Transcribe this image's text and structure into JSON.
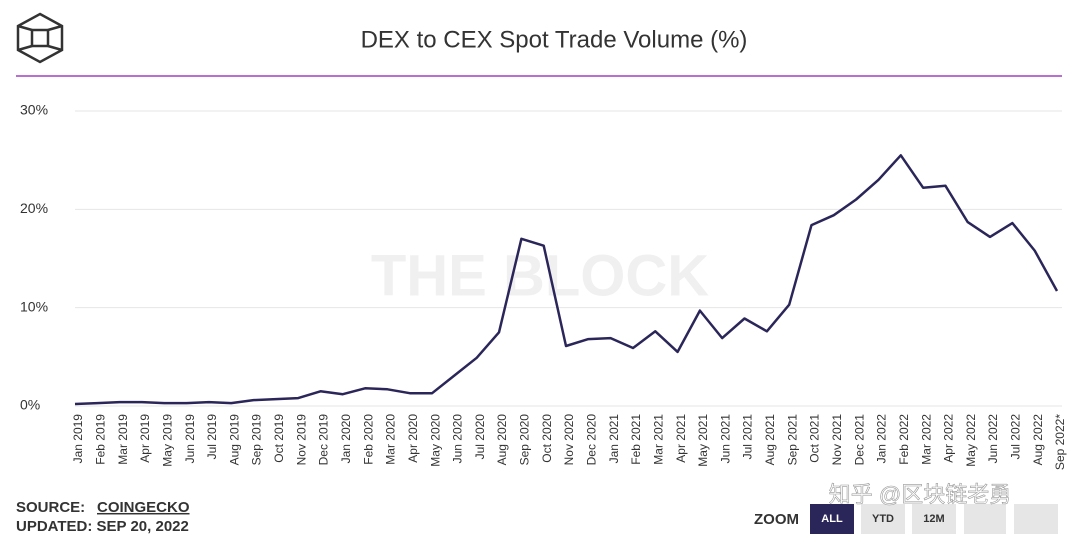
{
  "chart_data": {
    "type": "line",
    "title": "DEX to CEX Spot Trade Volume (%)",
    "categories": [
      "Jan 2019",
      "Feb 2019",
      "Mar 2019",
      "Apr 2019",
      "May 2019",
      "Jun 2019",
      "Jul 2019",
      "Aug 2019",
      "Sep 2019",
      "Oct 2019",
      "Nov 2019",
      "Dec 2019",
      "Jan 2020",
      "Feb 2020",
      "Mar 2020",
      "Apr 2020",
      "May 2020",
      "Jun 2020",
      "Jul 2020",
      "Aug 2020",
      "Sep 2020",
      "Oct 2020",
      "Nov 2020",
      "Dec 2020",
      "Jan 2021",
      "Feb 2021",
      "Mar 2021",
      "Apr 2021",
      "May 2021",
      "Jun 2021",
      "Jul 2021",
      "Aug 2021",
      "Sep 2021",
      "Oct 2021",
      "Nov 2021",
      "Dec 2021",
      "Jan 2022",
      "Feb 2022",
      "Mar 2022",
      "Apr 2022",
      "May 2022",
      "Jun 2022",
      "Jul 2022",
      "Aug 2022",
      "Sep 2022*"
    ],
    "values": [
      0.2,
      0.3,
      0.4,
      0.4,
      0.3,
      0.3,
      0.4,
      0.3,
      0.6,
      0.7,
      0.8,
      1.5,
      1.2,
      1.8,
      1.7,
      1.3,
      1.3,
      3.1,
      4.9,
      7.5,
      17.0,
      16.3,
      6.1,
      6.8,
      6.9,
      5.9,
      7.6,
      5.5,
      9.7,
      6.9,
      8.9,
      7.6,
      10.3,
      18.4,
      19.4,
      21.0,
      23.0,
      25.5,
      22.2,
      22.4,
      18.7,
      17.2,
      18.6,
      15.8,
      11.7
    ],
    "color": "#2b2659",
    "ylim": [
      0,
      30
    ],
    "yticks": [
      {
        "value": 0,
        "label": "0%"
      },
      {
        "value": 10,
        "label": "10%"
      },
      {
        "value": 20,
        "label": "20%"
      },
      {
        "value": 30,
        "label": "30%"
      }
    ],
    "grid": true,
    "watermark": "THE BLOCK"
  },
  "footer": {
    "source_label": "SOURCE:",
    "source": "COINGECKO",
    "updated": "UPDATED: SEP 20, 2022"
  },
  "zoom": {
    "label": "ZOOM",
    "buttons": [
      "ALL",
      "YTD",
      "12M"
    ]
  },
  "overlay_watermark": "知乎 @区块链老勇"
}
